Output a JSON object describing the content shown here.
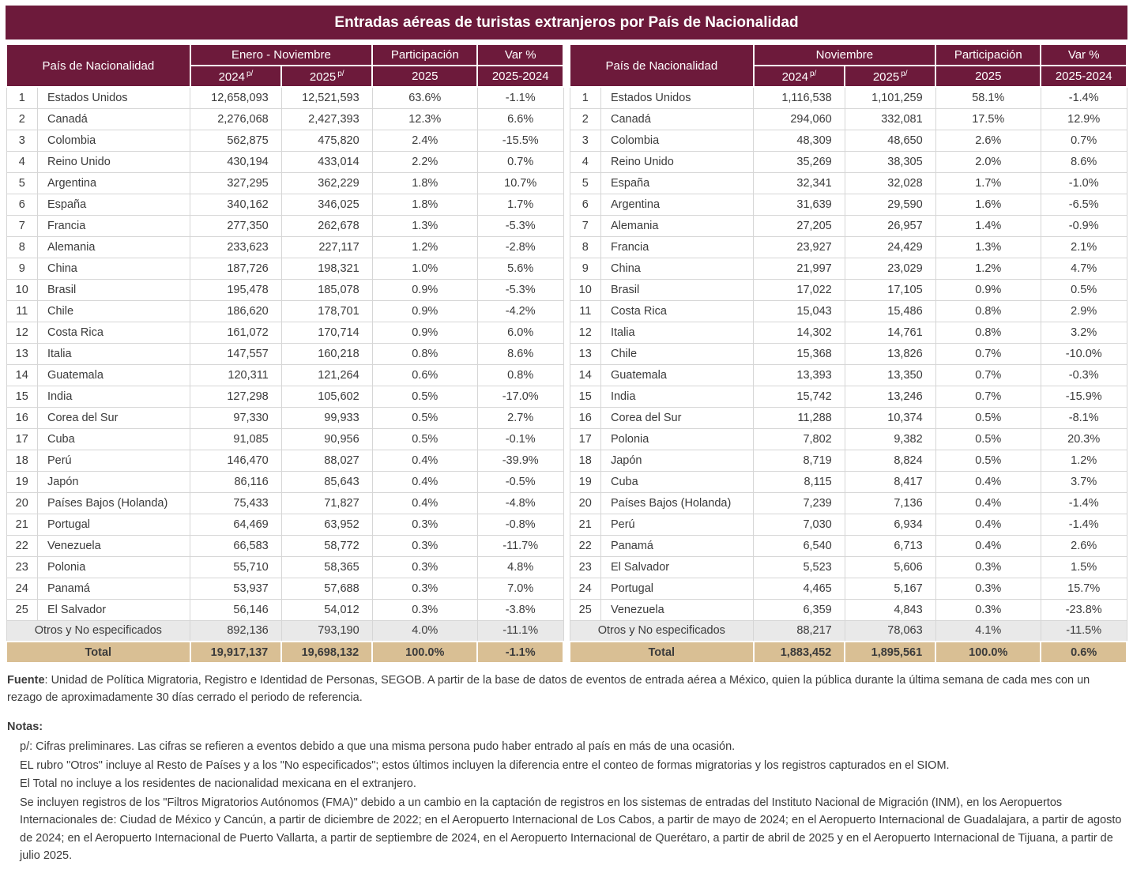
{
  "title": "Entradas aéreas de turistas extranjeros por País de Nacionalidad",
  "colors": {
    "header_bg": "#6D1A3B",
    "total_row_bg": "#D9BF94",
    "otros_row_bg": "#E9E9E9"
  },
  "chart_data": [
    {
      "type": "table",
      "period": "Enero - Noviembre",
      "headers": {
        "country": "País de Nacionalidad",
        "col_2024": "2024",
        "col_2025": "2025",
        "prelim": "p/",
        "participation": "Participación",
        "participation_sub": "2025",
        "var": "Var %",
        "var_sub": "2025-2024"
      },
      "rows": [
        [
          "1",
          "Estados Unidos",
          "12,658,093",
          "12,521,593",
          "63.6%",
          "-1.1%"
        ],
        [
          "2",
          "Canadá",
          "2,276,068",
          "2,427,393",
          "12.3%",
          "6.6%"
        ],
        [
          "3",
          "Colombia",
          "562,875",
          "475,820",
          "2.4%",
          "-15.5%"
        ],
        [
          "4",
          "Reino Unido",
          "430,194",
          "433,014",
          "2.2%",
          "0.7%"
        ],
        [
          "5",
          "Argentina",
          "327,295",
          "362,229",
          "1.8%",
          "10.7%"
        ],
        [
          "6",
          "España",
          "340,162",
          "346,025",
          "1.8%",
          "1.7%"
        ],
        [
          "7",
          "Francia",
          "277,350",
          "262,678",
          "1.3%",
          "-5.3%"
        ],
        [
          "8",
          "Alemania",
          "233,623",
          "227,117",
          "1.2%",
          "-2.8%"
        ],
        [
          "9",
          "China",
          "187,726",
          "198,321",
          "1.0%",
          "5.6%"
        ],
        [
          "10",
          "Brasil",
          "195,478",
          "185,078",
          "0.9%",
          "-5.3%"
        ],
        [
          "11",
          "Chile",
          "186,620",
          "178,701",
          "0.9%",
          "-4.2%"
        ],
        [
          "12",
          "Costa Rica",
          "161,072",
          "170,714",
          "0.9%",
          "6.0%"
        ],
        [
          "13",
          "Italia",
          "147,557",
          "160,218",
          "0.8%",
          "8.6%"
        ],
        [
          "14",
          "Guatemala",
          "120,311",
          "121,264",
          "0.6%",
          "0.8%"
        ],
        [
          "15",
          "India",
          "127,298",
          "105,602",
          "0.5%",
          "-17.0%"
        ],
        [
          "16",
          "Corea del Sur",
          "97,330",
          "99,933",
          "0.5%",
          "2.7%"
        ],
        [
          "17",
          "Cuba",
          "91,085",
          "90,956",
          "0.5%",
          "-0.1%"
        ],
        [
          "18",
          "Perú",
          "146,470",
          "88,027",
          "0.4%",
          "-39.9%"
        ],
        [
          "19",
          "Japón",
          "86,116",
          "85,643",
          "0.4%",
          "-0.5%"
        ],
        [
          "20",
          "Países Bajos (Holanda)",
          "75,433",
          "71,827",
          "0.4%",
          "-4.8%"
        ],
        [
          "21",
          "Portugal",
          "64,469",
          "63,952",
          "0.3%",
          "-0.8%"
        ],
        [
          "22",
          "Venezuela",
          "66,583",
          "58,772",
          "0.3%",
          "-11.7%"
        ],
        [
          "23",
          "Polonia",
          "55,710",
          "58,365",
          "0.3%",
          "4.8%"
        ],
        [
          "24",
          "Panamá",
          "53,937",
          "57,688",
          "0.3%",
          "7.0%"
        ],
        [
          "25",
          "El Salvador",
          "56,146",
          "54,012",
          "0.3%",
          "-3.8%"
        ]
      ],
      "otros": [
        "Otros y No especificados",
        "892,136",
        "793,190",
        "4.0%",
        "-11.1%"
      ],
      "total": [
        "Total",
        "19,917,137",
        "19,698,132",
        "100.0%",
        "-1.1%"
      ]
    },
    {
      "type": "table",
      "period": "Noviembre",
      "headers": {
        "country": "País de Nacionalidad",
        "col_2024": "2024",
        "col_2025": "2025",
        "prelim": "p/",
        "participation": "Participación",
        "participation_sub": "2025",
        "var": "Var %",
        "var_sub": "2025-2024"
      },
      "rows": [
        [
          "1",
          "Estados Unidos",
          "1,116,538",
          "1,101,259",
          "58.1%",
          "-1.4%"
        ],
        [
          "2",
          "Canadá",
          "294,060",
          "332,081",
          "17.5%",
          "12.9%"
        ],
        [
          "3",
          "Colombia",
          "48,309",
          "48,650",
          "2.6%",
          "0.7%"
        ],
        [
          "4",
          "Reino Unido",
          "35,269",
          "38,305",
          "2.0%",
          "8.6%"
        ],
        [
          "5",
          "España",
          "32,341",
          "32,028",
          "1.7%",
          "-1.0%"
        ],
        [
          "6",
          "Argentina",
          "31,639",
          "29,590",
          "1.6%",
          "-6.5%"
        ],
        [
          "7",
          "Alemania",
          "27,205",
          "26,957",
          "1.4%",
          "-0.9%"
        ],
        [
          "8",
          "Francia",
          "23,927",
          "24,429",
          "1.3%",
          "2.1%"
        ],
        [
          "9",
          "China",
          "21,997",
          "23,029",
          "1.2%",
          "4.7%"
        ],
        [
          "10",
          "Brasil",
          "17,022",
          "17,105",
          "0.9%",
          "0.5%"
        ],
        [
          "11",
          "Costa Rica",
          "15,043",
          "15,486",
          "0.8%",
          "2.9%"
        ],
        [
          "12",
          "Italia",
          "14,302",
          "14,761",
          "0.8%",
          "3.2%"
        ],
        [
          "13",
          "Chile",
          "15,368",
          "13,826",
          "0.7%",
          "-10.0%"
        ],
        [
          "14",
          "Guatemala",
          "13,393",
          "13,350",
          "0.7%",
          "-0.3%"
        ],
        [
          "15",
          "India",
          "15,742",
          "13,246",
          "0.7%",
          "-15.9%"
        ],
        [
          "16",
          "Corea del Sur",
          "11,288",
          "10,374",
          "0.5%",
          "-8.1%"
        ],
        [
          "17",
          "Polonia",
          "7,802",
          "9,382",
          "0.5%",
          "20.3%"
        ],
        [
          "18",
          "Japón",
          "8,719",
          "8,824",
          "0.5%",
          "1.2%"
        ],
        [
          "19",
          "Cuba",
          "8,115",
          "8,417",
          "0.4%",
          "3.7%"
        ],
        [
          "20",
          "Países Bajos (Holanda)",
          "7,239",
          "7,136",
          "0.4%",
          "-1.4%"
        ],
        [
          "21",
          "Perú",
          "7,030",
          "6,934",
          "0.4%",
          "-1.4%"
        ],
        [
          "22",
          "Panamá",
          "6,540",
          "6,713",
          "0.4%",
          "2.6%"
        ],
        [
          "23",
          "El Salvador",
          "5,523",
          "5,606",
          "0.3%",
          "1.5%"
        ],
        [
          "24",
          "Portugal",
          "4,465",
          "5,167",
          "0.3%",
          "15.7%"
        ],
        [
          "25",
          "Venezuela",
          "6,359",
          "4,843",
          "0.3%",
          "-23.8%"
        ]
      ],
      "otros": [
        "Otros y No especificados",
        "88,217",
        "78,063",
        "4.1%",
        "-11.5%"
      ],
      "total": [
        "Total",
        "1,883,452",
        "1,895,561",
        "100.0%",
        "0.6%"
      ]
    }
  ],
  "footer": {
    "fuente_label": "Fuente",
    "fuente_text": ": Unidad de Política Migratoria, Registro e Identidad de Personas, SEGOB. A partir de la base de datos de eventos de entrada aérea a México, quien la pública durante la última semana de cada mes con un rezago de aproximadamente 30 días cerrado el periodo de referencia.",
    "notas_label": "Notas:",
    "notes": [
      "p/: Cifras preliminares.   Las cifras se refieren a eventos debido a que una misma persona pudo haber entrado al país en más de una ocasión.",
      "EL rubro \"Otros\" incluye al Resto de Países y a los \"No especificados\"; estos últimos incluyen la diferencia entre el conteo de formas migratorias y los registros capturados en el SIOM.",
      "El Total no incluye a los residentes de nacionalidad mexicana en el extranjero.",
      "Se incluyen registros de los \"Filtros Migratorios Autónomos (FMA)\" debido a un cambio en la captación de registros en los sistemas de entradas del Instituto Nacional de Migración (INM), en los Aeropuertos Internacionales de: Ciudad de México y Cancún, a partir de diciembre de 2022; en el Aeropuerto Internacional de Los Cabos, a partir de mayo de 2024; en el Aeropuerto Internacional de Guadalajara, a partir de agosto de 2024; en el Aeropuerto Internacional de Puerto Vallarta, a partir de septiembre de 2024, en el Aeropuerto Internacional de Querétaro, a partir de abril de 2025 y en el Aeropuerto Internacional de Tijuana, a partir de julio 2025."
    ]
  }
}
